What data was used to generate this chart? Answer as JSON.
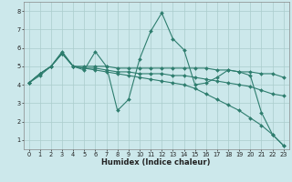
{
  "xlabel": "Humidex (Indice chaleur)",
  "bg_color": "#cce8eb",
  "grid_color": "#aacccc",
  "line_color": "#2e7d6e",
  "xlim": [
    -0.5,
    23.5
  ],
  "ylim": [
    0.5,
    8.5
  ],
  "xticks": [
    0,
    1,
    2,
    3,
    4,
    5,
    6,
    7,
    8,
    9,
    10,
    11,
    12,
    13,
    14,
    15,
    16,
    17,
    18,
    19,
    20,
    21,
    22,
    23
  ],
  "yticks": [
    1,
    2,
    3,
    4,
    5,
    6,
    7,
    8
  ],
  "lines": [
    {
      "x": [
        0,
        1,
        2,
        3,
        4,
        5,
        6,
        7,
        8,
        9,
        10,
        11,
        12,
        13,
        14,
        15,
        16,
        17,
        18,
        19,
        20,
        21,
        22,
        23
      ],
      "y": [
        4.1,
        4.6,
        5.0,
        5.8,
        5.0,
        4.8,
        5.8,
        5.0,
        2.6,
        3.2,
        5.4,
        6.9,
        7.9,
        6.5,
        5.9,
        4.0,
        4.1,
        4.4,
        4.8,
        4.7,
        4.5,
        2.5,
        1.3,
        0.7
      ]
    },
    {
      "x": [
        0,
        1,
        2,
        3,
        4,
        5,
        6,
        7,
        8,
        9,
        10,
        11,
        12,
        13,
        14,
        15,
        16,
        17,
        18,
        19,
        20,
        21,
        22,
        23
      ],
      "y": [
        4.1,
        4.6,
        5.0,
        5.7,
        5.0,
        5.0,
        5.0,
        5.0,
        4.9,
        4.9,
        4.9,
        4.9,
        4.9,
        4.9,
        4.9,
        4.9,
        4.9,
        4.8,
        4.8,
        4.7,
        4.7,
        4.6,
        4.6,
        4.4
      ]
    },
    {
      "x": [
        0,
        1,
        2,
        3,
        4,
        5,
        6,
        7,
        8,
        9,
        10,
        11,
        12,
        13,
        14,
        15,
        16,
        17,
        18,
        19,
        20,
        21,
        22,
        23
      ],
      "y": [
        4.1,
        4.6,
        5.0,
        5.7,
        5.0,
        4.9,
        4.9,
        4.8,
        4.7,
        4.7,
        4.6,
        4.6,
        4.6,
        4.5,
        4.5,
        4.4,
        4.3,
        4.2,
        4.1,
        4.0,
        3.9,
        3.7,
        3.5,
        3.4
      ]
    },
    {
      "x": [
        0,
        1,
        2,
        3,
        4,
        5,
        6,
        7,
        8,
        9,
        10,
        11,
        12,
        13,
        14,
        15,
        16,
        17,
        18,
        19,
        20,
        21,
        22,
        23
      ],
      "y": [
        4.1,
        4.5,
        5.0,
        5.7,
        5.0,
        4.9,
        4.8,
        4.7,
        4.6,
        4.5,
        4.4,
        4.3,
        4.2,
        4.1,
        4.0,
        3.8,
        3.5,
        3.2,
        2.9,
        2.6,
        2.2,
        1.8,
        1.3,
        0.7
      ]
    }
  ]
}
